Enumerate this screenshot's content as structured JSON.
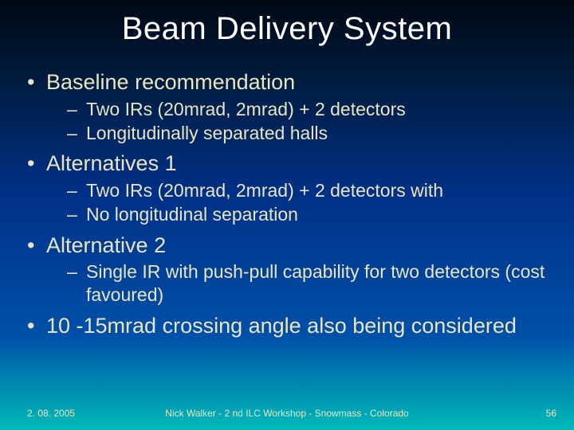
{
  "colors": {
    "title_color": "#ffffff",
    "text_color": "#e9e6bf",
    "bg_gradient_stops": [
      "#000814",
      "#001b3d",
      "#003087",
      "#0050a8",
      "#00bab8"
    ]
  },
  "typography": {
    "title_fontsize": 40,
    "lvl1_fontsize": 27,
    "lvl2_fontsize": 23,
    "footer_fontsize": 12,
    "font_family": "Arial"
  },
  "title": "Beam Delivery System",
  "bullets": [
    {
      "text": "Baseline recommendation",
      "sub": [
        "Two IRs (20mrad, 2mrad) + 2 detectors",
        "Longitudinally separated halls"
      ]
    },
    {
      "text": "Alternatives 1",
      "sub": [
        "Two IRs (20mrad, 2mrad) + 2 detectors with",
        "No longitudinal separation"
      ]
    },
    {
      "text": "Alternative 2",
      "sub": [
        "Single IR with push-pull capability for two detectors (cost favoured)"
      ]
    },
    {
      "text": "10 -15mrad crossing angle also being considered",
      "sub": []
    }
  ],
  "footer": {
    "date": "2. 08. 2005",
    "center": "Nick Walker - 2 nd ILC Workshop - Snowmass - Colorado",
    "page": "56"
  }
}
